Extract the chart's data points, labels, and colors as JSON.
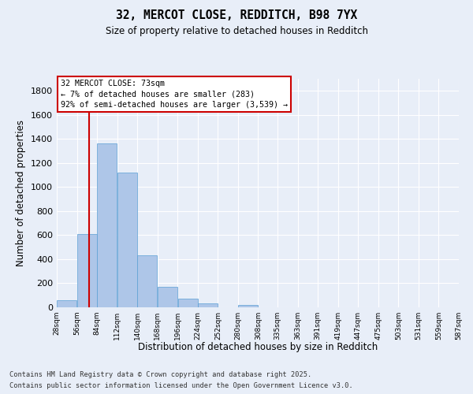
{
  "title1": "32, MERCOT CLOSE, REDDITCH, B98 7YX",
  "title2": "Size of property relative to detached houses in Redditch",
  "xlabel": "Distribution of detached houses by size in Redditch",
  "ylabel": "Number of detached properties",
  "bar_color": "#aec6e8",
  "bar_edge_color": "#5a9fd4",
  "background_color": "#e8eef8",
  "grid_color": "#ffffff",
  "bin_edges": [
    28,
    56,
    84,
    112,
    140,
    168,
    196,
    224,
    252,
    280,
    308,
    335,
    363,
    391,
    419,
    447,
    475,
    503,
    531,
    559,
    587
  ],
  "bar_heights": [
    60,
    610,
    1360,
    1120,
    430,
    170,
    70,
    35,
    0,
    20,
    0,
    0,
    0,
    0,
    0,
    0,
    0,
    0,
    0,
    0
  ],
  "tick_labels": [
    "28sqm",
    "56sqm",
    "84sqm",
    "112sqm",
    "140sqm",
    "168sqm",
    "196sqm",
    "224sqm",
    "252sqm",
    "280sqm",
    "308sqm",
    "335sqm",
    "363sqm",
    "391sqm",
    "419sqm",
    "447sqm",
    "475sqm",
    "503sqm",
    "531sqm",
    "559sqm",
    "587sqm"
  ],
  "vline_x": 73,
  "vline_color": "#cc0000",
  "annotation_text": "32 MERCOT CLOSE: 73sqm\n← 7% of detached houses are smaller (283)\n92% of semi-detached houses are larger (3,539) →",
  "annotation_box_color": "#ffffff",
  "annotation_box_edge": "#cc0000",
  "ylim": [
    0,
    1900
  ],
  "yticks": [
    0,
    200,
    400,
    600,
    800,
    1000,
    1200,
    1400,
    1600,
    1800
  ],
  "footer1": "Contains HM Land Registry data © Crown copyright and database right 2025.",
  "footer2": "Contains public sector information licensed under the Open Government Licence v3.0."
}
